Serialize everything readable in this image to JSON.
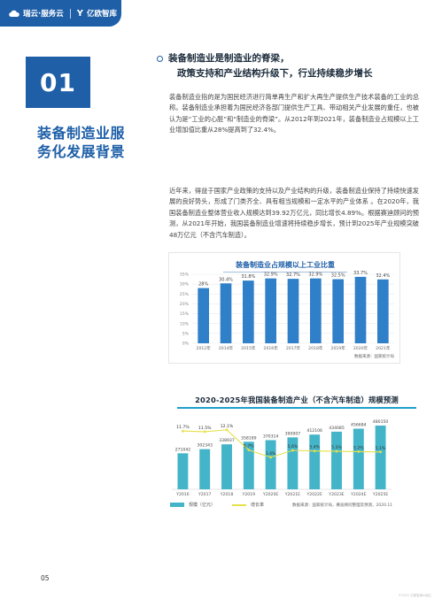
{
  "header": {
    "brand_left": "瑞云·服务云",
    "brand_right": "亿欧智库"
  },
  "section": {
    "number": "01",
    "title": "装备制造业服务化发展背景"
  },
  "headline": {
    "line1": "装备制造业是制造业的脊梁，",
    "line2": "政策支持和产业结构升级下，行业持续稳步增长"
  },
  "paragraphs": [
    "装备制造业指的是为国民经济进行简单再生产和扩大再生产提供生产技术装备的工业的总称。装备制造业承担着为国民经济各部门提供生产工具、带动相关产业发展的重任，也被认为是“工业的心脏”和“制造业的脊梁”。从2012年到2021年，装备制造业占规模以上工业增加值比重从28%提高到了32.4%。",
    "近年来，得益于国家产业政策的支持以及产业结构的升级，装备制造业保持了持续快速发展的良好势头，形成了门类齐全、具有相当规模和一定水平的产业体系 。在2020年，我国装备制造业整体营业收入规模达到39.92万亿元，同比增长4.89%。根据赛迪顾问的预测，从2021年开始，我国装备制造业增速将持续稳步增长，预计到2025年产业规模突破48万亿元（不含汽车制造）。"
  ],
  "chart_data": [
    {
      "type": "bar",
      "title": "装备制造业占规模以上工业比重",
      "categories": [
        "2012年",
        "2014年",
        "2015年",
        "2016年",
        "2017年",
        "2018年",
        "2019年",
        "2020年",
        "2021年"
      ],
      "values": [
        28,
        30.4,
        31.8,
        32.9,
        32.7,
        32.9,
        32.5,
        33.7,
        32.4
      ],
      "value_labels": [
        "28%",
        "30.4%",
        "31.8%",
        "32.9%",
        "32.7%",
        "32.9%",
        "32.5%",
        "33.7%",
        "32.4%"
      ],
      "ytick_labels": [
        "0%",
        "5%",
        "10%",
        "15%",
        "20%",
        "25%",
        "30%",
        "35%"
      ],
      "ylim": [
        0,
        35
      ],
      "grid": true,
      "source": "数据来源：国家统计局",
      "bar_color": "#2f7fc9"
    },
    {
      "type": "bar",
      "title": "2020-2025年我国装备制造产业（不含汽车制造）规模预测",
      "categories": [
        "Y2016",
        "Y2017",
        "Y2018",
        "Y2019",
        "Y2020E",
        "Y2021E",
        "Y2022E",
        "Y2023E",
        "Y2024E",
        "Y2025E"
      ],
      "series": [
        {
          "name": "规模（亿元）",
          "values": [
            271042,
            302343,
            338937,
            358189,
            370314,
            390907,
            412106,
            434085,
            456684,
            480150
          ],
          "color": "#44b4c8"
        },
        {
          "name": "增长率",
          "type": "line",
          "values": [
            11.7,
            11.5,
            12.1,
            5.7,
            3.4,
            5.6,
            5.4,
            5.3,
            5.2,
            5.1
          ],
          "value_labels": [
            "11.7%",
            "11.5%",
            "12.1%",
            "5.7%",
            "3.4%",
            "5.6%",
            "5.4%",
            "5.3%",
            "5.2%",
            "5.1%"
          ],
          "color": "#e6e04a"
        }
      ],
      "source": "数据来源：国家统计局，赛迪顾问整理及预测，2020.11"
    }
  ],
  "page_number": "05",
  "footnote": "©2021 亿欧智库&瑞云"
}
